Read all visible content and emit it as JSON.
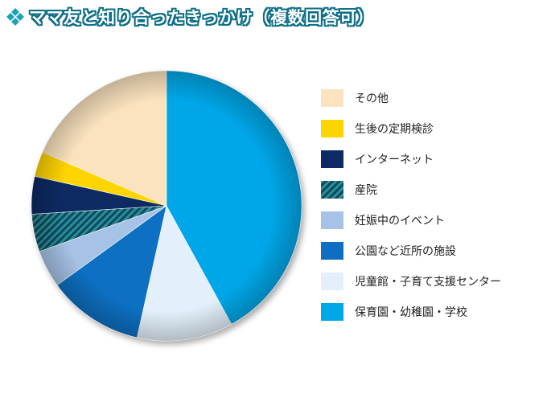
{
  "title": "ママ友と知り合ったきっかけ（複数回答可）",
  "colors": {
    "title_stroke": "#0e6f86",
    "title_icon": "#1aa3b8"
  },
  "chart_data": {
    "type": "pie",
    "title": "ママ友と知り合ったきっかけ（複数回答可）",
    "legend_position": "right",
    "start": "12 o'clock",
    "direction": "counterclockwise",
    "slices": [
      {
        "label": "その他",
        "value": 18.5,
        "color": "#fbe3bf",
        "pattern": "solid"
      },
      {
        "label": "生後の定期検診",
        "value": 3.0,
        "color": "#ffd500",
        "pattern": "solid"
      },
      {
        "label": "インターネット",
        "value": 4.5,
        "color": "#0d2a64",
        "pattern": "solid"
      },
      {
        "label": "産院",
        "value": 4.5,
        "color": "#2c8f99",
        "pattern": "hatched"
      },
      {
        "label": "妊娠中のイベント",
        "value": 4.5,
        "color": "#a6c2e6",
        "pattern": "solid"
      },
      {
        "label": "公園など近所の施設",
        "value": 11.5,
        "color": "#0e6fc2",
        "pattern": "solid"
      },
      {
        "label": "児童館・子育て支援センター",
        "value": 11.5,
        "color": "#e3f0fb",
        "pattern": "solid"
      },
      {
        "label": "保育園・幼稚園・学校",
        "value": 42.0,
        "color": "#00a7e8",
        "pattern": "solid"
      }
    ]
  }
}
